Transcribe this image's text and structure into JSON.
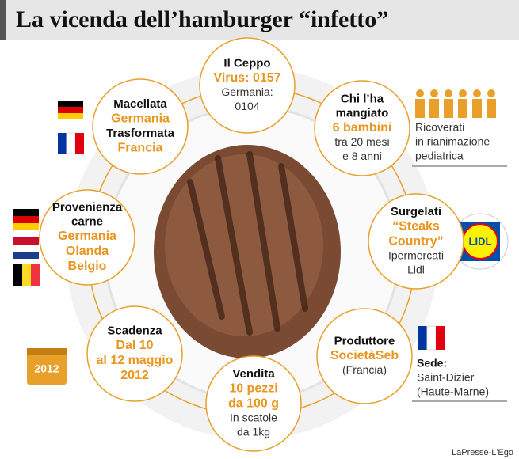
{
  "header": {
    "title": "La vicenda dell’hamburger “infetto”"
  },
  "nodes": [
    {
      "sections": [
        {
          "label": [
            "Il Ceppo"
          ],
          "highlight": [
            "Virus: 0157"
          ],
          "text": [
            "Germania:",
            "0104"
          ]
        }
      ]
    },
    {
      "sections": [
        {
          "label": [
            "Macellata"
          ],
          "highlight": [
            "Germania"
          ]
        },
        {
          "label": [
            "Trasformata"
          ],
          "highlight": [
            "Francia"
          ]
        }
      ]
    },
    {
      "sections": [
        {
          "label": [
            "Chi l’ha",
            "mangiato"
          ],
          "highlight": [
            "6 bambini"
          ],
          "text": [
            "tra 20 mesi",
            "e 8 anni"
          ]
        }
      ]
    },
    {
      "sections": [
        {
          "label": [
            "Provenienza",
            "carne"
          ],
          "highlight": [
            "Germania",
            "Olanda",
            "Belgio"
          ]
        }
      ]
    },
    {
      "sections": [
        {
          "label": [
            "Surgelati"
          ],
          "highlight": [
            "“Steaks",
            "Country”"
          ],
          "text": [
            "Ipermercati",
            "Lidl"
          ]
        }
      ]
    },
    {
      "sections": [
        {
          "label": [
            "Scadenza"
          ],
          "highlight": [
            "Dal 10",
            "al 12 maggio",
            "2012"
          ]
        }
      ]
    },
    {
      "sections": [
        {
          "label": [
            "Vendita"
          ],
          "highlight": [
            "10 pezzi",
            "da 100 g"
          ],
          "text": [
            "In scatole",
            "da 1kg"
          ]
        }
      ]
    },
    {
      "sections": [
        {
          "label": [
            "Produttore"
          ],
          "highlight": [
            "SocietàSeb"
          ],
          "text": [
            "(Francia)"
          ]
        }
      ]
    }
  ],
  "side_notes": {
    "patients": [
      "Ricoverati",
      "in rianimazione",
      "pediatrica"
    ],
    "seat": {
      "label": "Sede:",
      "text": [
        "Saint-Dizier",
        "(Haute-Marne)"
      ]
    }
  },
  "logo": "LIDL",
  "calendar": "2012",
  "credit": "LaPresse-L'Ego"
}
